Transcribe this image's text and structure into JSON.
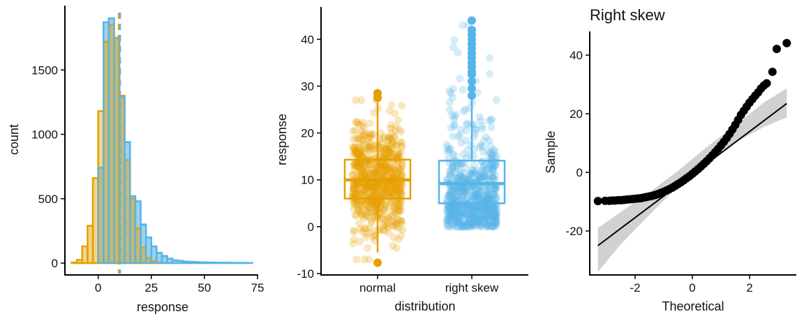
{
  "colors": {
    "normal": "#E69F00",
    "right_skew": "#56B4E9",
    "overlap": "#8FA89A",
    "qq_points": "#000000",
    "qq_band": "#BEBEBE"
  },
  "chart_data": [
    {
      "type": "histogram",
      "title": "",
      "xlabel": "response",
      "ylabel": "count",
      "xlim": [
        -15,
        75
      ],
      "ylim": [
        0,
        2000
      ],
      "x_ticks": [
        0,
        25,
        50,
        75
      ],
      "y_ticks": [
        0,
        500,
        1000,
        1500
      ],
      "x_tick_labels": [
        "0",
        "25",
        "50",
        "75"
      ],
      "y_tick_labels": [
        "0",
        "500",
        "1000",
        "1500"
      ],
      "bin_width": 2.5,
      "grid": false,
      "legend": "none",
      "series": [
        {
          "key": "normal",
          "x_start": -12.5,
          "counts": [
            5,
            25,
            130,
            290,
            660,
            1180,
            1720,
            1850,
            1750,
            1300,
            800,
            500,
            270,
            120,
            40,
            15,
            3
          ]
        },
        {
          "key": "right_skew",
          "x_start": -12.5,
          "counts": [
            0,
            0,
            0,
            0,
            0,
            740,
            1870,
            1900,
            1750,
            1290,
            940,
            520,
            480,
            300,
            200,
            130,
            80,
            55,
            35,
            22,
            18,
            12,
            10,
            8,
            6,
            5,
            4,
            4,
            3,
            3,
            2,
            2,
            2,
            1
          ]
        }
      ],
      "mean_lines": [
        {
          "key": "normal",
          "value": 10
        },
        {
          "key": "right_skew",
          "value": 10
        }
      ]
    },
    {
      "type": "boxplot",
      "title": "",
      "xlabel": "distribution",
      "ylabel": "response",
      "categories": [
        "normal",
        "right skew"
      ],
      "ylim": [
        -10,
        46
      ],
      "y_ticks": [
        -10,
        0,
        10,
        20,
        30,
        40
      ],
      "y_tick_labels": [
        "-10",
        "0",
        "10",
        "20",
        "30",
        "40"
      ],
      "grid": false,
      "legend": "none",
      "boxes": [
        {
          "key": "normal",
          "label": "normal",
          "whisker_low": -5.5,
          "q1": 6,
          "median": 10,
          "q3": 14.3,
          "whisker_high": 26.5,
          "outliers": [
            -7.7,
            27.5,
            28.5
          ]
        },
        {
          "key": "right_skew",
          "label": "right skew",
          "whisker_low": 0,
          "q1": 5,
          "median": 9.2,
          "q3": 14.1,
          "whisker_high": 27.5,
          "outliers": [
            28,
            29.5,
            31,
            32.5,
            33,
            34,
            35,
            36,
            37,
            38,
            39,
            40,
            41,
            42,
            44
          ]
        }
      ],
      "jitter": {
        "points_per_group": 700,
        "opacity": 0.25
      }
    },
    {
      "type": "scatter",
      "subtype": "qq",
      "title": "Right skew",
      "xlabel": "Theoretical",
      "ylabel": "Sample",
      "xlim": [
        -3.6,
        3.6
      ],
      "ylim": [
        -35,
        48
      ],
      "x_ticks": [
        -2,
        0,
        2
      ],
      "y_ticks": [
        -20,
        0,
        20,
        40
      ],
      "x_tick_labels": [
        "-2",
        "0",
        "2"
      ],
      "y_tick_labels": [
        "-20",
        "0",
        "20",
        "40"
      ],
      "grid": false,
      "legend": "none",
      "points": [
        [
          -3.3,
          -9.8
        ],
        [
          -3.05,
          -9.7
        ],
        [
          -2.9,
          -9.7
        ],
        [
          -2.8,
          -9.6
        ],
        [
          -2.7,
          -9.6
        ],
        [
          -2.6,
          -9.5
        ],
        [
          -2.5,
          -9.5
        ],
        [
          -2.4,
          -9.4
        ],
        [
          -2.3,
          -9.3
        ],
        [
          -2.2,
          -9.2
        ],
        [
          -2.1,
          -9.1
        ],
        [
          -2.0,
          -9.0
        ],
        [
          -1.9,
          -8.9
        ],
        [
          -1.8,
          -8.8
        ],
        [
          -1.7,
          -8.6
        ],
        [
          -1.6,
          -8.4
        ],
        [
          -1.5,
          -8.2
        ],
        [
          -1.4,
          -8.0
        ],
        [
          -1.3,
          -7.7
        ],
        [
          -1.2,
          -7.4
        ],
        [
          -1.1,
          -7.0
        ],
        [
          -1.0,
          -6.6
        ],
        [
          -0.9,
          -6.2
        ],
        [
          -0.8,
          -5.7
        ],
        [
          -0.7,
          -5.2
        ],
        [
          -0.6,
          -4.6
        ],
        [
          -0.5,
          -4.0
        ],
        [
          -0.4,
          -3.4
        ],
        [
          -0.3,
          -2.7
        ],
        [
          -0.2,
          -2.0
        ],
        [
          -0.1,
          -1.3
        ],
        [
          0.0,
          -0.5
        ],
        [
          0.1,
          0.3
        ],
        [
          0.2,
          1.1
        ],
        [
          0.3,
          2.0
        ],
        [
          0.4,
          2.9
        ],
        [
          0.5,
          3.8
        ],
        [
          0.6,
          4.8
        ],
        [
          0.7,
          5.8
        ],
        [
          0.8,
          6.9
        ],
        [
          0.9,
          8.0
        ],
        [
          1.0,
          9.2
        ],
        [
          1.1,
          10.4
        ],
        [
          1.2,
          11.7
        ],
        [
          1.3,
          13.1
        ],
        [
          1.4,
          14.6
        ],
        [
          1.5,
          16.2
        ],
        [
          1.6,
          17.9
        ],
        [
          1.7,
          19.6
        ],
        [
          1.8,
          21.0
        ],
        [
          1.9,
          22.4
        ],
        [
          2.0,
          23.8
        ],
        [
          2.1,
          25.0
        ],
        [
          2.2,
          26.2
        ],
        [
          2.3,
          27.3
        ],
        [
          2.4,
          28.6
        ],
        [
          2.5,
          29.6
        ],
        [
          2.6,
          30.4
        ],
        [
          2.8,
          34.3
        ],
        [
          2.95,
          42.1
        ],
        [
          3.3,
          44.1
        ]
      ],
      "fit_line": {
        "from": [
          -3.3,
          -25
        ],
        "to": [
          3.3,
          23.5
        ]
      },
      "confidence_band": {
        "x": [
          -3.3,
          -2.5,
          -1.5,
          -0.5,
          0.5,
          1.5,
          2.5,
          3.3
        ],
        "lower": [
          -34,
          -24.5,
          -14.5,
          -4.8,
          4.0,
          10.2,
          15.5,
          18.8
        ],
        "upper": [
          -19,
          -13.5,
          -6.8,
          0.5,
          8.6,
          16.0,
          23.8,
          28.7
        ]
      }
    }
  ]
}
